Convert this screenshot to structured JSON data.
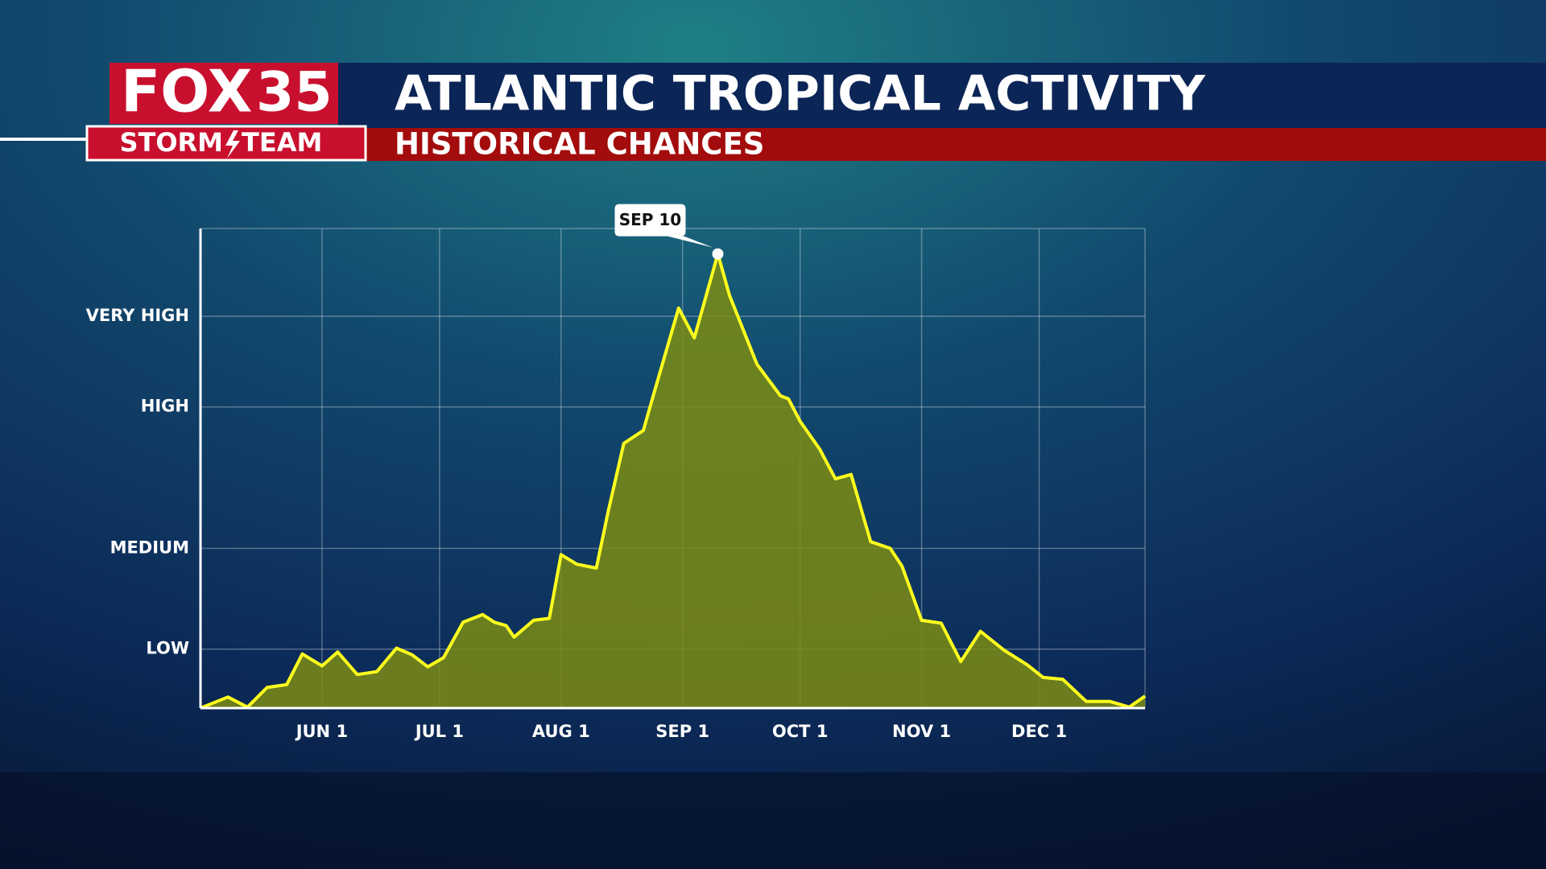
{
  "logo": {
    "brand": "FOX",
    "number": "35",
    "team_left": "STORM",
    "team_right": "TEAM"
  },
  "chart_data": {
    "type": "area",
    "title": "ATLANTIC TROPICAL ACTIVITY",
    "subtitle": "HISTORICAL CHANCES",
    "x": [
      0,
      7,
      12,
      17,
      22,
      26,
      31,
      35,
      40,
      45,
      50,
      54,
      58,
      62,
      67,
      72,
      75,
      78,
      80,
      85,
      89,
      92,
      96,
      101,
      104,
      108,
      113,
      116,
      122,
      126,
      132,
      135,
      142,
      148,
      150,
      153,
      158,
      162,
      166,
      171,
      176,
      179,
      184,
      189,
      194,
      199,
      205,
      211,
      215,
      220,
      226,
      232,
      237,
      241
    ],
    "values": [
      0,
      2.3,
      0.2,
      4.3,
      4.9,
      11.3,
      8.8,
      11.7,
      7.0,
      7.6,
      12.5,
      11.1,
      8.6,
      10.5,
      17.9,
      19.5,
      17.9,
      17.2,
      14.8,
      18.3,
      18.7,
      32.0,
      30.0,
      29.2,
      40.9,
      55.2,
      57.9,
      66.5,
      83.4,
      77.2,
      94.7,
      86.0,
      71.7,
      65.1,
      64.5,
      59.8,
      54.0,
      47.8,
      48.7,
      34.7,
      33.3,
      29.6,
      18.3,
      17.7,
      9.7,
      16.0,
      12.1,
      9.0,
      6.4,
      6.0,
      1.4,
      1.4,
      0.2,
      2.5
    ],
    "color": "#ffff1e",
    "fill_color": "#7d8c14",
    "xlim": [
      0,
      241
    ],
    "xticks": [
      {
        "value": 31,
        "label": "JUN 1"
      },
      {
        "value": 61,
        "label": "JUL 1"
      },
      {
        "value": 92,
        "label": "AUG 1"
      },
      {
        "value": 123,
        "label": "SEP 1"
      },
      {
        "value": 153,
        "label": "OCT 1"
      },
      {
        "value": 184,
        "label": "NOV 1"
      },
      {
        "value": 214,
        "label": "DEC 1"
      }
    ],
    "ylim": [
      0,
      100
    ],
    "yticks": [
      {
        "value": 12.3,
        "label": "LOW"
      },
      {
        "value": 33.3,
        "label": "MEDIUM"
      },
      {
        "value": 62.8,
        "label": "HIGH"
      },
      {
        "value": 81.7,
        "label": "VERY HIGH"
      }
    ],
    "grid": true,
    "annotation": {
      "label": "SEP 10",
      "x": 132,
      "point_index": 30
    }
  }
}
